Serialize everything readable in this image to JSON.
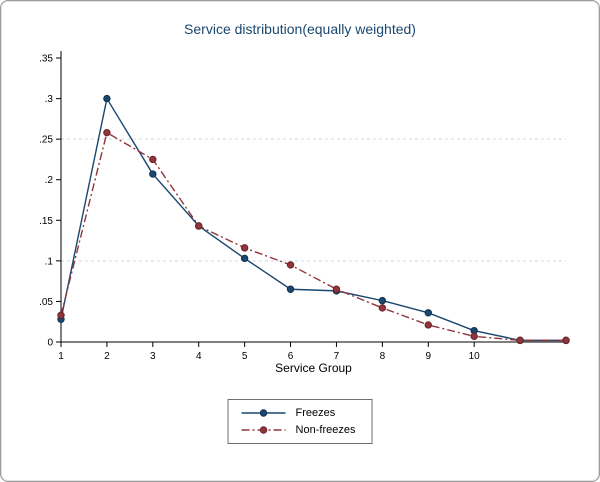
{
  "window": {
    "background": "#ffffff",
    "border_color": "#9a9a9a"
  },
  "chart_data": {
    "type": "line",
    "title": "Service distribution(equally weighted)",
    "title_color": "#1a476f",
    "xlabel": "Service Group",
    "ylabel": "",
    "x": [
      1,
      2,
      3,
      4,
      5,
      6,
      7,
      8,
      9,
      10,
      11,
      12
    ],
    "xlim": [
      1,
      12
    ],
    "ylim": [
      0,
      0.35
    ],
    "xtick_values": [
      1,
      2,
      3,
      4,
      5,
      6,
      7,
      8,
      9,
      10
    ],
    "xtick_labels": [
      "1",
      "2",
      "3",
      "4",
      "5",
      "6",
      "7",
      "8",
      "9",
      "10"
    ],
    "ytick_values": [
      0,
      0.05,
      0.1,
      0.15,
      0.2,
      0.25,
      0.3,
      0.35
    ],
    "ytick_labels": [
      "0",
      ".05",
      ".1",
      ".15",
      ".2",
      ".25",
      ".3",
      ".35"
    ],
    "gridline_values": [
      0.1,
      0.25
    ],
    "grid_color": "#c6d9ec",
    "axis_color": "#000000",
    "grid": "horizontal-dashed",
    "legend_position": "bottom-center",
    "series": [
      {
        "name": "Freezes",
        "color": "#1a476f",
        "edge_color": "#10304d",
        "dash": "solid",
        "marker": "circle",
        "values": [
          0.028,
          0.3,
          0.207,
          0.143,
          0.103,
          0.065,
          0.063,
          0.051,
          0.036,
          0.014,
          0.002,
          0.002
        ]
      },
      {
        "name": "Non-freezes",
        "color": "#90353b",
        "edge_color": "#6b2429",
        "dash": "dashdot",
        "marker": "circle",
        "values": [
          0.033,
          0.258,
          0.225,
          0.143,
          0.116,
          0.095,
          0.065,
          0.042,
          0.021,
          0.007,
          0.002,
          0.002
        ]
      }
    ]
  }
}
